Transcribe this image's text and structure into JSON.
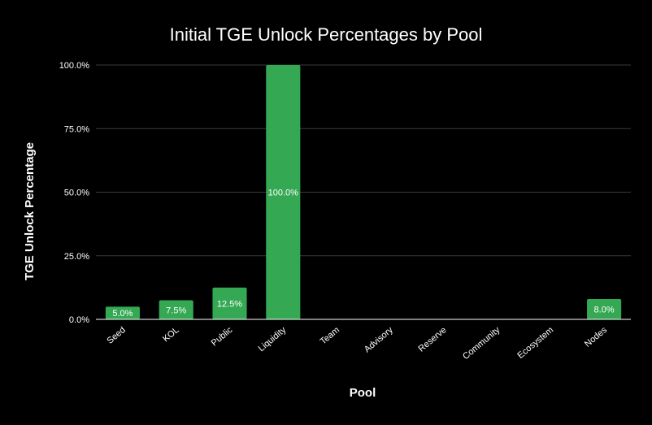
{
  "chart_data": {
    "type": "bar",
    "title": "Initial TGE Unlock Percentages by Pool",
    "xlabel": "Pool",
    "ylabel": "TGE Unlock Percentage",
    "categories": [
      "Seed",
      "KOL",
      "Public",
      "Liquidity",
      "Team",
      "Advisory",
      "Reserve",
      "Community",
      "Ecosystem",
      "Nodes"
    ],
    "values": [
      5.0,
      7.5,
      12.5,
      100.0,
      0,
      0,
      0,
      0,
      0,
      8.0
    ],
    "data_labels": [
      "5.0%",
      "7.5%",
      "12.5%",
      "100.0%",
      "",
      "",
      "",
      "",
      "",
      "8.0%"
    ],
    "ylim": [
      0,
      100
    ],
    "yticks": [
      0,
      25,
      50,
      75,
      100
    ],
    "ytick_labels": [
      "0.0%",
      "25.0%",
      "50.0%",
      "75.0%",
      "100.0%"
    ],
    "grid": true,
    "colors": {
      "background": "#000000",
      "bar": "#34a853",
      "text": "#ffffff",
      "grid": "#3a3a3a",
      "axis": "#ffffff"
    }
  }
}
